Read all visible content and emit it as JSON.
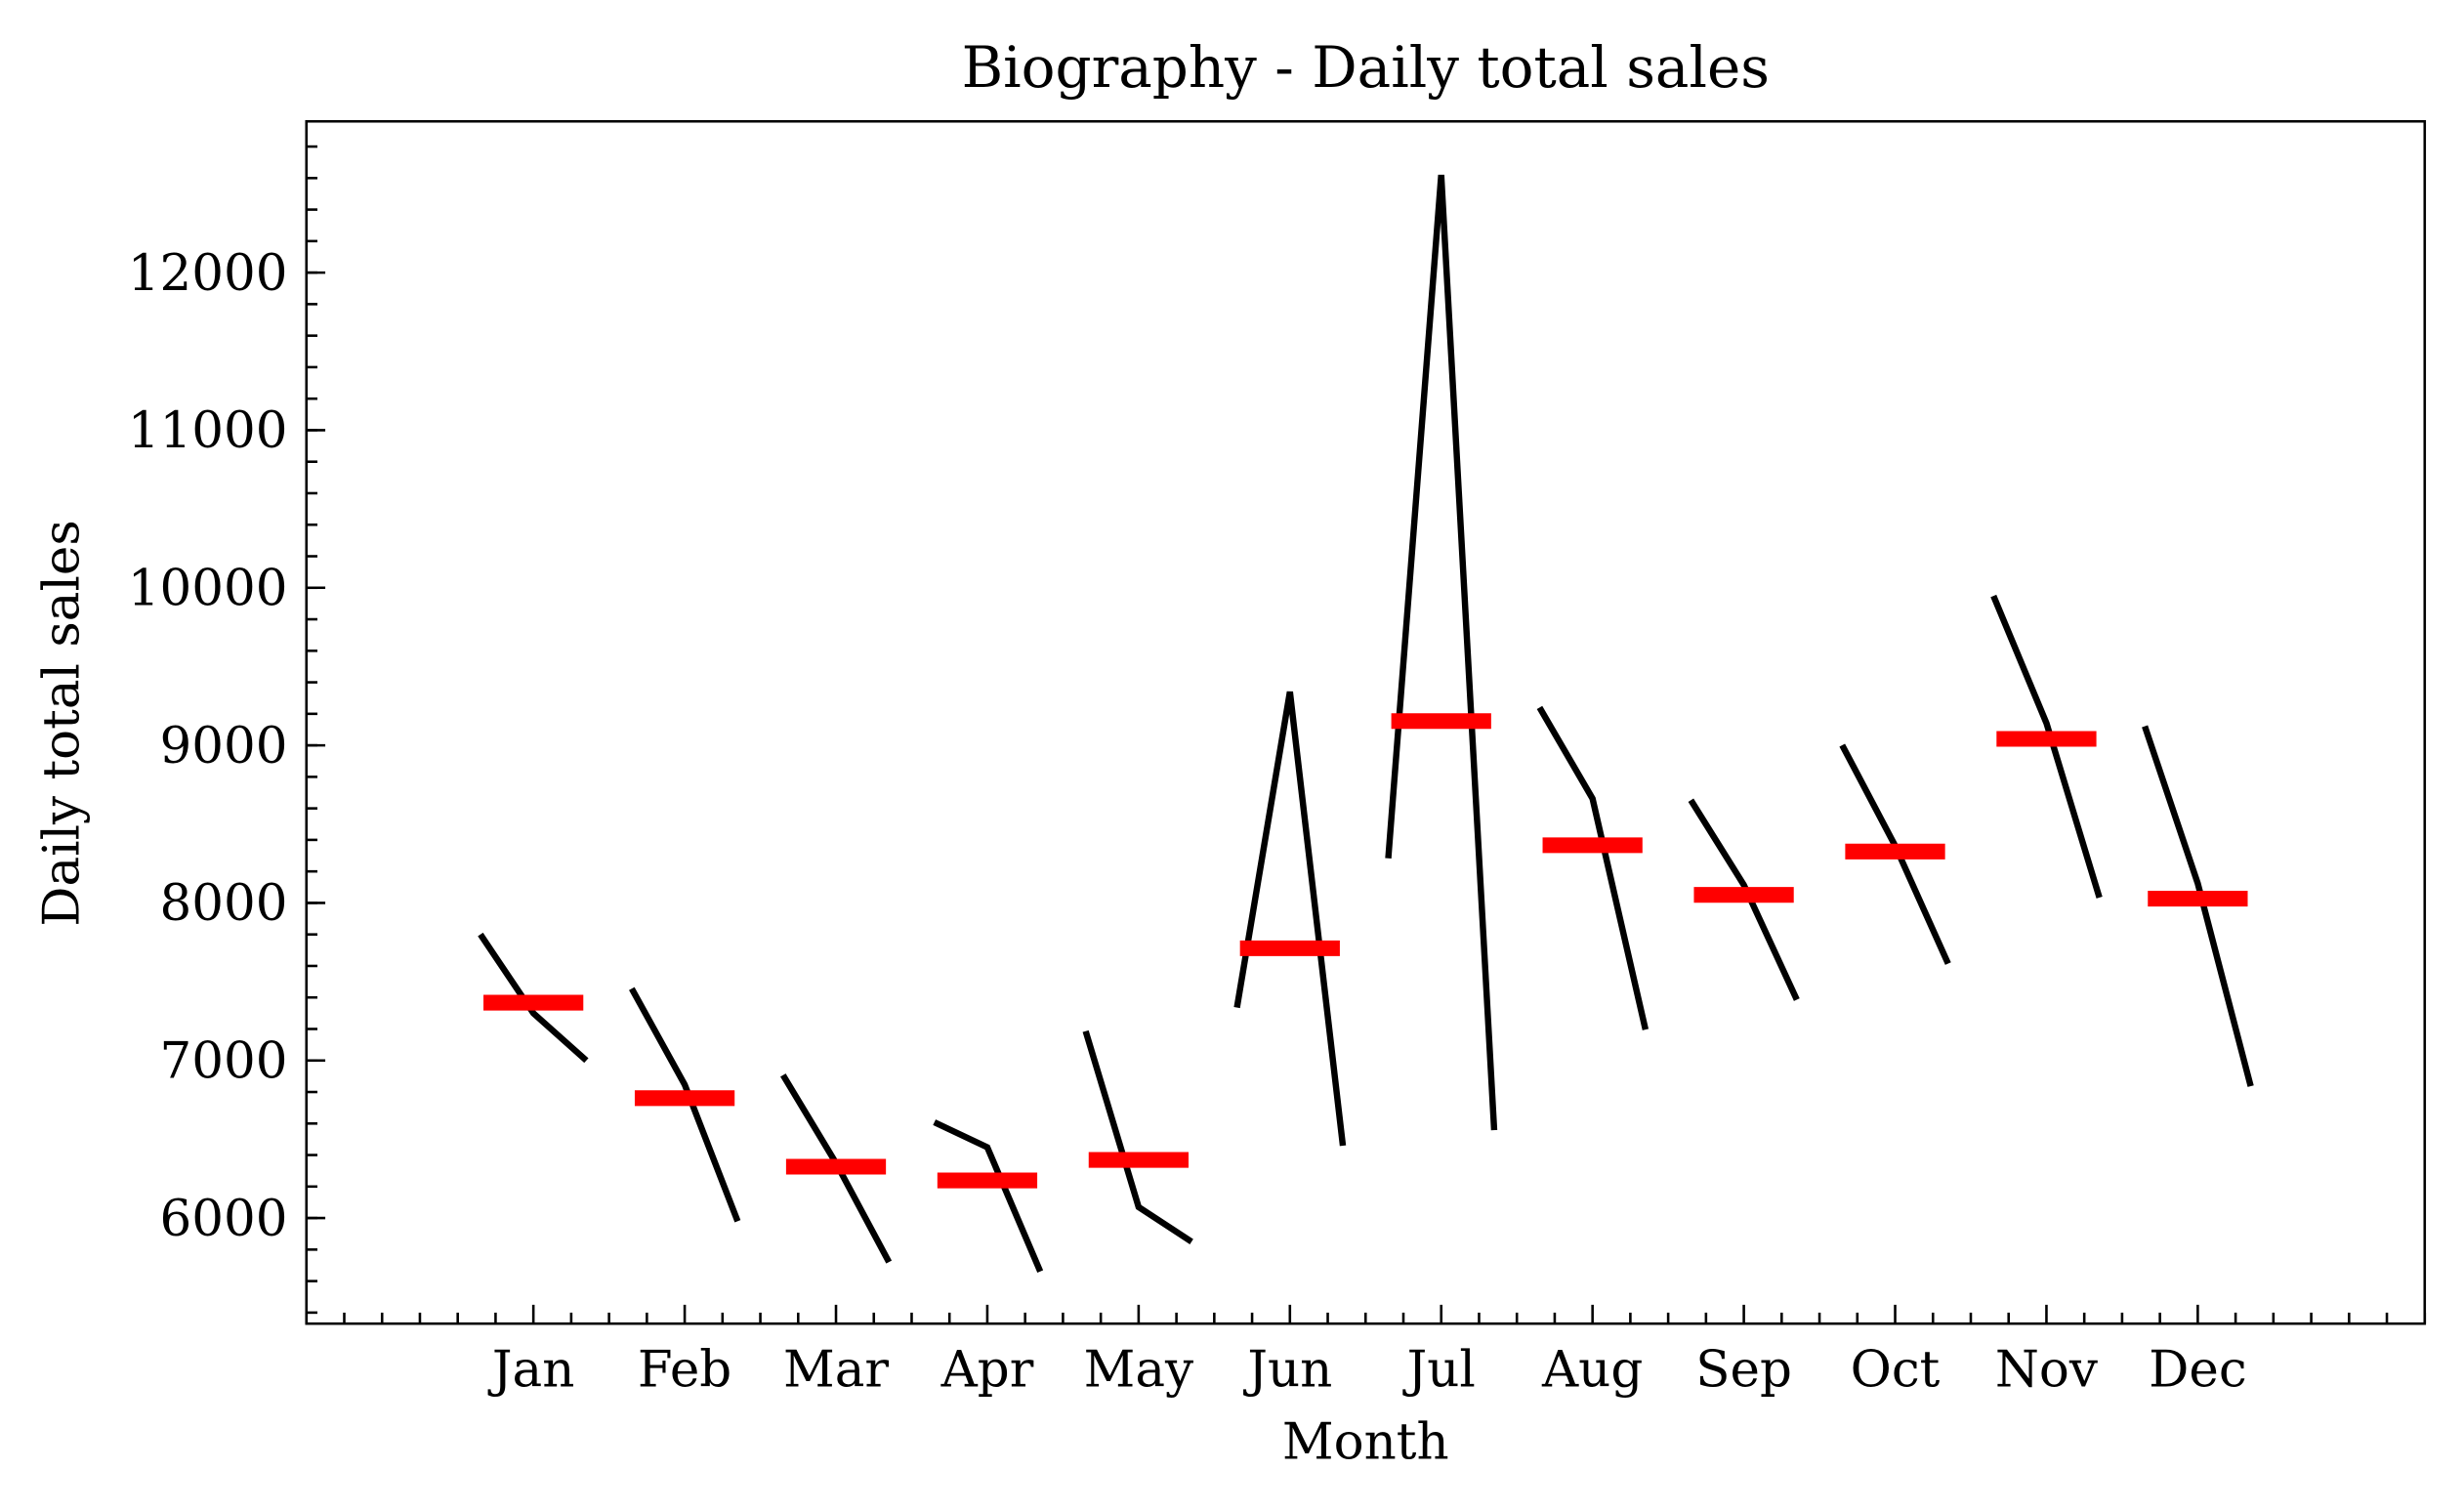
{
  "chart_data": {
    "type": "month_plot",
    "title": "Biography - Daily total sales",
    "xlabel": "Month",
    "ylabel": "Daily total sales",
    "categories": [
      "Jan",
      "Feb",
      "Mar",
      "Apr",
      "May",
      "Jun",
      "Jul",
      "Aug",
      "Sep",
      "Oct",
      "Nov",
      "Dec"
    ],
    "values": [
      [
        7800,
        7300,
        7000
      ],
      [
        7456,
        6847,
        5980
      ],
      [
        6907,
        6349,
        5721
      ],
      [
        6608,
        6449,
        5661
      ],
      [
        7186,
        6070,
        5850
      ],
      [
        7336,
        9340,
        6459
      ],
      [
        8283,
        12620,
        6558
      ],
      [
        9240,
        8662,
        7196
      ],
      [
        8652,
        8114,
        7386
      ],
      [
        9001,
        8363,
        7615
      ],
      [
        9948,
        9141,
        8034
      ],
      [
        9121,
        8124,
        6837
      ]
    ],
    "means": [
      7367,
      6761,
      6326,
      6239,
      6369,
      7712,
      9154,
      8366,
      8051,
      8326,
      9041,
      8027
    ],
    "line_color": "#000000",
    "mean_color": "#ff0000",
    "xlim": [
      -1.5,
      12.5
    ],
    "ylim": [
      5330,
      12960
    ],
    "yticks": [
      6000,
      7000,
      8000,
      9000,
      10000,
      11000,
      12000
    ],
    "minor_ticks": true
  }
}
